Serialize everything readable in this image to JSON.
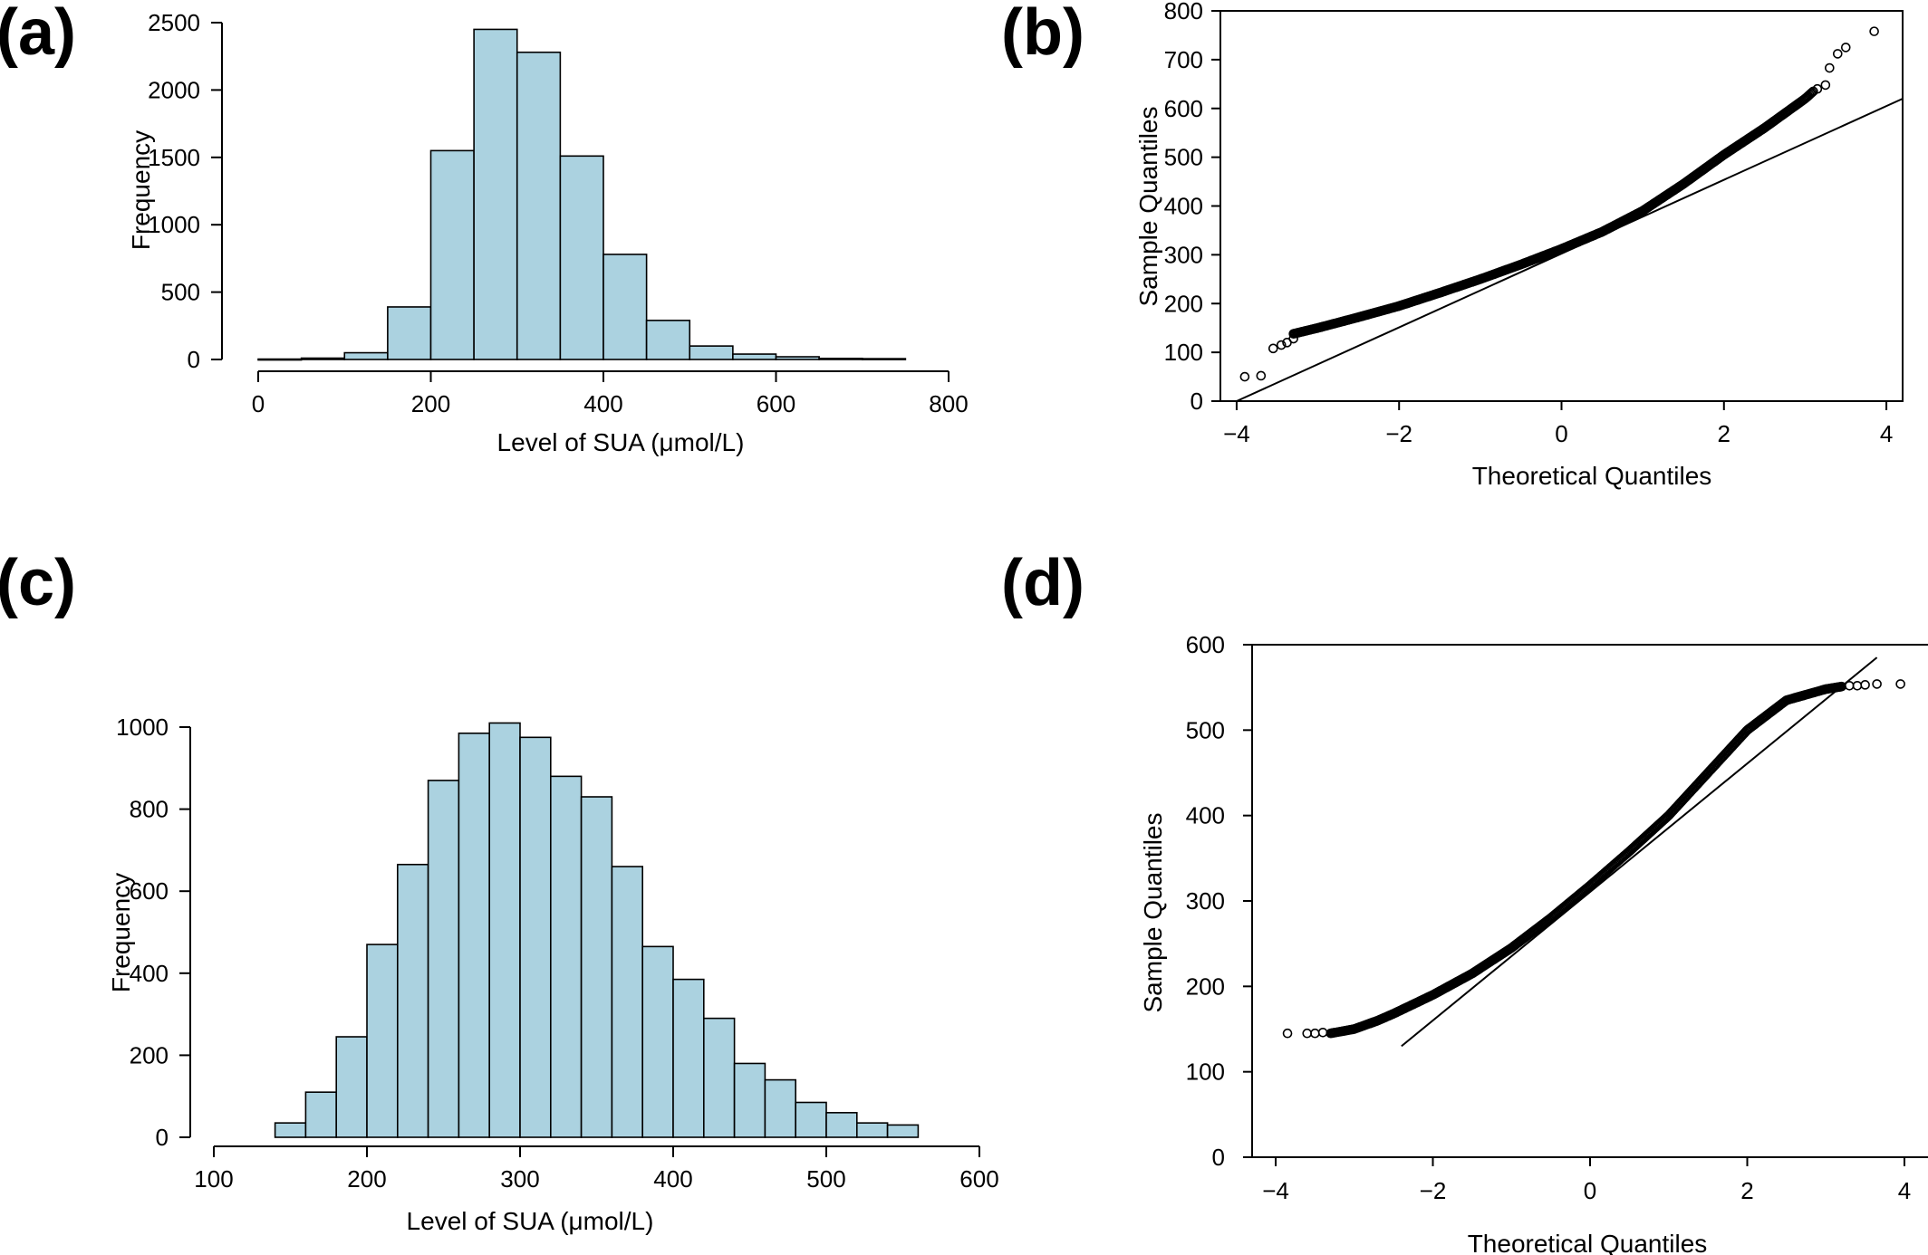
{
  "panels": {
    "a": {
      "label": "(a)"
    },
    "b": {
      "label": "(b)"
    },
    "c": {
      "label": "(c)"
    },
    "d": {
      "label": "(d)"
    }
  },
  "chart_data": [
    {
      "id": "a",
      "type": "bar",
      "xlabel": "Level of SUA (μmol/L)",
      "ylabel": "Frequency",
      "xlim": [
        0,
        800
      ],
      "ylim": [
        0,
        2500
      ],
      "xticks": [
        0,
        200,
        400,
        600,
        800
      ],
      "yticks": [
        0,
        500,
        1000,
        1500,
        2000,
        2500
      ],
      "bin_edges": [
        0,
        50,
        100,
        150,
        200,
        250,
        300,
        350,
        400,
        450,
        500,
        550,
        600,
        650,
        700,
        750
      ],
      "values": [
        3,
        10,
        50,
        390,
        1550,
        2450,
        2280,
        1510,
        780,
        290,
        100,
        40,
        20,
        8,
        6
      ],
      "grid": false
    },
    {
      "id": "b",
      "type": "scatter",
      "xlabel": "Theoretical Quantiles",
      "ylabel": "Sample Quantiles",
      "xlim": [
        -4.2,
        4.2
      ],
      "ylim": [
        0,
        800
      ],
      "xticks": [
        -4,
        -2,
        0,
        2,
        4
      ],
      "xtick_labels": [
        "−4",
        "−2",
        "0",
        "2",
        "4"
      ],
      "yticks": [
        0,
        100,
        200,
        300,
        400,
        500,
        600,
        700,
        800
      ],
      "qq_curve": [
        [
          -3.3,
          138
        ],
        [
          -3,
          150
        ],
        [
          -2.5,
          172
        ],
        [
          -2,
          195
        ],
        [
          -1.5,
          222
        ],
        [
          -1,
          250
        ],
        [
          -0.5,
          280
        ],
        [
          0,
          312
        ],
        [
          0.5,
          347
        ],
        [
          1,
          390
        ],
        [
          1.5,
          445
        ],
        [
          2,
          505
        ],
        [
          2.5,
          560
        ],
        [
          3,
          620
        ],
        [
          3.1,
          635
        ]
      ],
      "extreme_points": [
        [
          -3.9,
          50
        ],
        [
          -3.7,
          52
        ],
        [
          -3.55,
          108
        ],
        [
          -3.45,
          115
        ],
        [
          -3.38,
          120
        ],
        [
          -3.3,
          128
        ],
        [
          3.15,
          640
        ],
        [
          3.25,
          648
        ],
        [
          3.3,
          683
        ],
        [
          3.4,
          712
        ],
        [
          3.5,
          725
        ],
        [
          3.85,
          758
        ]
      ],
      "reference_line": [
        [
          -4.0,
          0
        ],
        [
          4.2,
          620
        ]
      ],
      "grid": false
    },
    {
      "id": "c",
      "type": "bar",
      "xlabel": "Level of SUA (μmol/L)",
      "ylabel": "Frequency",
      "xlim": [
        100,
        600
      ],
      "ylim": [
        0,
        1000
      ],
      "xticks": [
        100,
        200,
        300,
        400,
        500,
        600
      ],
      "yticks": [
        0,
        200,
        400,
        600,
        800,
        1000
      ],
      "bin_edges": [
        140,
        160,
        180,
        200,
        220,
        240,
        260,
        280,
        300,
        320,
        340,
        360,
        380,
        400,
        420,
        440,
        460,
        480,
        500,
        520,
        540,
        560
      ],
      "values": [
        35,
        110,
        245,
        470,
        665,
        870,
        985,
        1010,
        975,
        880,
        830,
        660,
        465,
        385,
        290,
        180,
        140,
        85,
        60,
        35,
        30
      ],
      "grid": false
    },
    {
      "id": "d",
      "type": "scatter",
      "xlabel": "Theoretical Quantiles",
      "ylabel": "Sample Quantiles",
      "xlim": [
        -4.3,
        4.3
      ],
      "ylim": [
        0,
        600
      ],
      "xticks": [
        -4,
        -2,
        0,
        2,
        4
      ],
      "xtick_labels": [
        "−4",
        "−2",
        "0",
        "2",
        "4"
      ],
      "yticks": [
        0,
        100,
        200,
        300,
        400,
        500,
        600
      ],
      "qq_curve": [
        [
          -3.3,
          145
        ],
        [
          -3,
          150
        ],
        [
          -2.7,
          160
        ],
        [
          -2.5,
          168
        ],
        [
          -2,
          190
        ],
        [
          -1.5,
          215
        ],
        [
          -1,
          245
        ],
        [
          -0.5,
          280
        ],
        [
          0,
          318
        ],
        [
          0.5,
          358
        ],
        [
          1,
          400
        ],
        [
          1.5,
          450
        ],
        [
          2,
          500
        ],
        [
          2.5,
          535
        ],
        [
          3,
          548
        ],
        [
          3.2,
          551
        ]
      ],
      "extreme_points": [
        [
          -3.85,
          145
        ],
        [
          -3.6,
          145
        ],
        [
          -3.5,
          145
        ],
        [
          -3.4,
          146
        ],
        [
          3.3,
          552
        ],
        [
          3.4,
          552
        ],
        [
          3.5,
          553
        ],
        [
          3.65,
          554
        ],
        [
          3.95,
          554
        ]
      ],
      "reference_line": [
        [
          -2.4,
          130
        ],
        [
          3.65,
          585
        ]
      ],
      "grid": false
    }
  ]
}
